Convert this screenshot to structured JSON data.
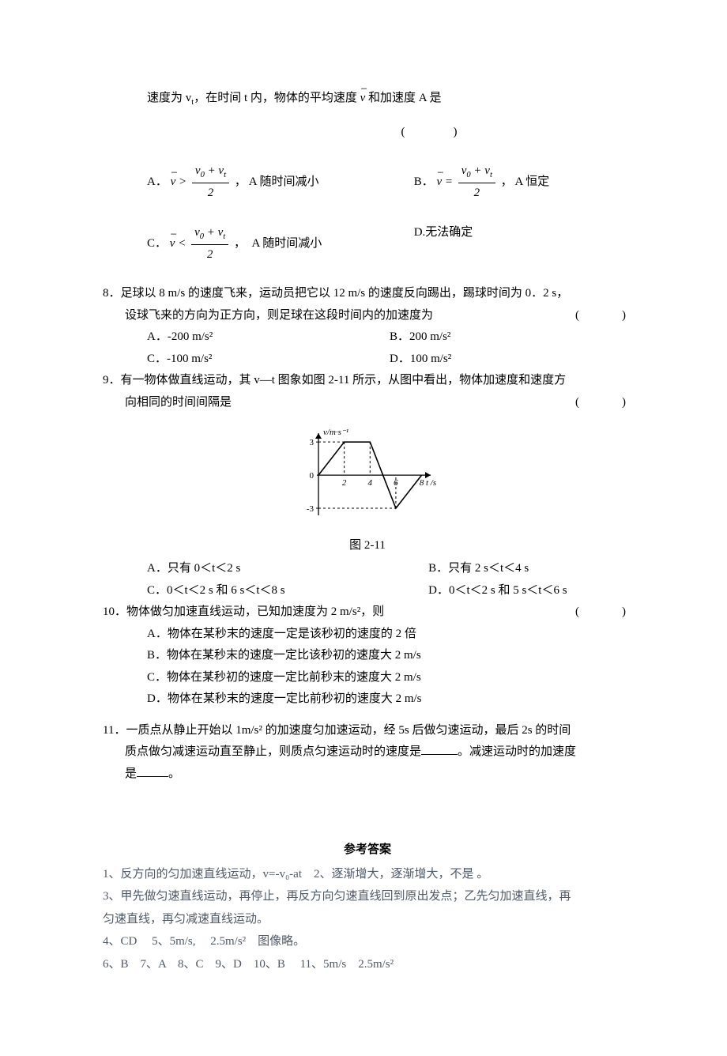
{
  "q7": {
    "stem_cont": "速度为 v",
    "stem_sub": "t",
    "stem_cont2": "，在时间 t 内，物体的平均速度 ",
    "stem_cont3": " 和加速度 A 是",
    "vbar": "v",
    "optA_pre": "A．",
    "optA_rel": " > ",
    "optA_post": "， A 随时间减小",
    "optB_pre": "B．",
    "optB_rel": " = ",
    "optB_post": "， A 恒定",
    "optC_pre": "C．",
    "optC_rel": " < ",
    "optC_post": "，　A 随时间减小",
    "optD": "D.无法确定",
    "frac_num_a": "v",
    "frac_num_b": "0",
    "frac_num_c": " + v",
    "frac_num_d": "t",
    "frac_den": "2"
  },
  "q8": {
    "num": "8．",
    "stem1": "足球以 8 m/s 的速度飞来，运动员把它以 12 m/s 的速度反向踢出，踢球时间为 0．2 s，",
    "stem2": "设球飞来的方向为正方向，则足球在这段时间内的加速度为",
    "optA": "A．-200 m/s²",
    "optB": "B．200 m/s²",
    "optC": "C．-100 m/s²",
    "optD": "D．100 m/s²"
  },
  "q9": {
    "num": "9．",
    "stem1": "有一物体做直线运动，其 v—t 图象如图 2-11 所示，从图中看出，物体加速度和速度方",
    "stem2": "向相同的时间间隔是",
    "caption": "图 2-11",
    "optA": "A．只有 0＜t＜2 s",
    "optB": "B．只有 2 s＜t＜4 s",
    "optC": "C．0＜t＜2 s 和 6 s＜t＜8 s",
    "optD": "D．0＜t＜2 s 和 5 s＜t＜6 s",
    "chart": {
      "axis_y_label": "v/m·s⁻¹",
      "axis_x_label": "t /s",
      "y_ticks": [
        -3,
        0,
        3
      ],
      "x_ticks": [
        2,
        4,
        6,
        8
      ],
      "points": [
        [
          0,
          0
        ],
        [
          2,
          3
        ],
        [
          4,
          3
        ],
        [
          6,
          -3
        ],
        [
          8,
          0
        ]
      ],
      "xlim": [
        0,
        8.7
      ],
      "ylim": [
        -3.5,
        3.8
      ],
      "stroke": "#000000",
      "w": 180,
      "h": 130
    }
  },
  "q10": {
    "num": "10．",
    "stem": "物体做匀加速直线运动，已知加速度为 2 m/s²，则",
    "optA": "A．物体在某秒末的速度一定是该秒初的速度的 2 倍",
    "optB": "B．物体在某秒末的速度一定比该秒初的速度大 2 m/s",
    "optC": "C．物体在某秒初的速度一定比前秒末的速度大 2 m/s",
    "optD": "D．物体在某秒末的速度一定比前秒初的速度大 2 m/s"
  },
  "q11": {
    "num": "11．",
    "stem1": "一质点从静止开始以 1m/s² 的加速度匀加速运动，经 5s 后做匀速运动，最后 2s 的时间",
    "stem2a": "质点做匀减速运动直至静止，则质点匀速运动时的速度是",
    "stem2b": "。减速运动时的加速度",
    "stem3a": "是",
    "stem3b": "。"
  },
  "answers": {
    "title": "参考答案",
    "l1": "1、反方向的匀加速直线运动，v=-v₀-at　2、逐渐增大，逐渐增大，不是 。",
    "l2": "3、甲先做匀速直线运动，再停止，再反方向匀速直线回到原出发点；乙先匀加速直线，再",
    "l3": "匀速直线，再匀减速直线运动。",
    "l4": "4、CD　 5、5m/s,　 2.5m/s²　图像略。",
    "l5": "6、B　7、A　8、C　9、D　10、B　 11、5m/s　2.5m/s²"
  }
}
